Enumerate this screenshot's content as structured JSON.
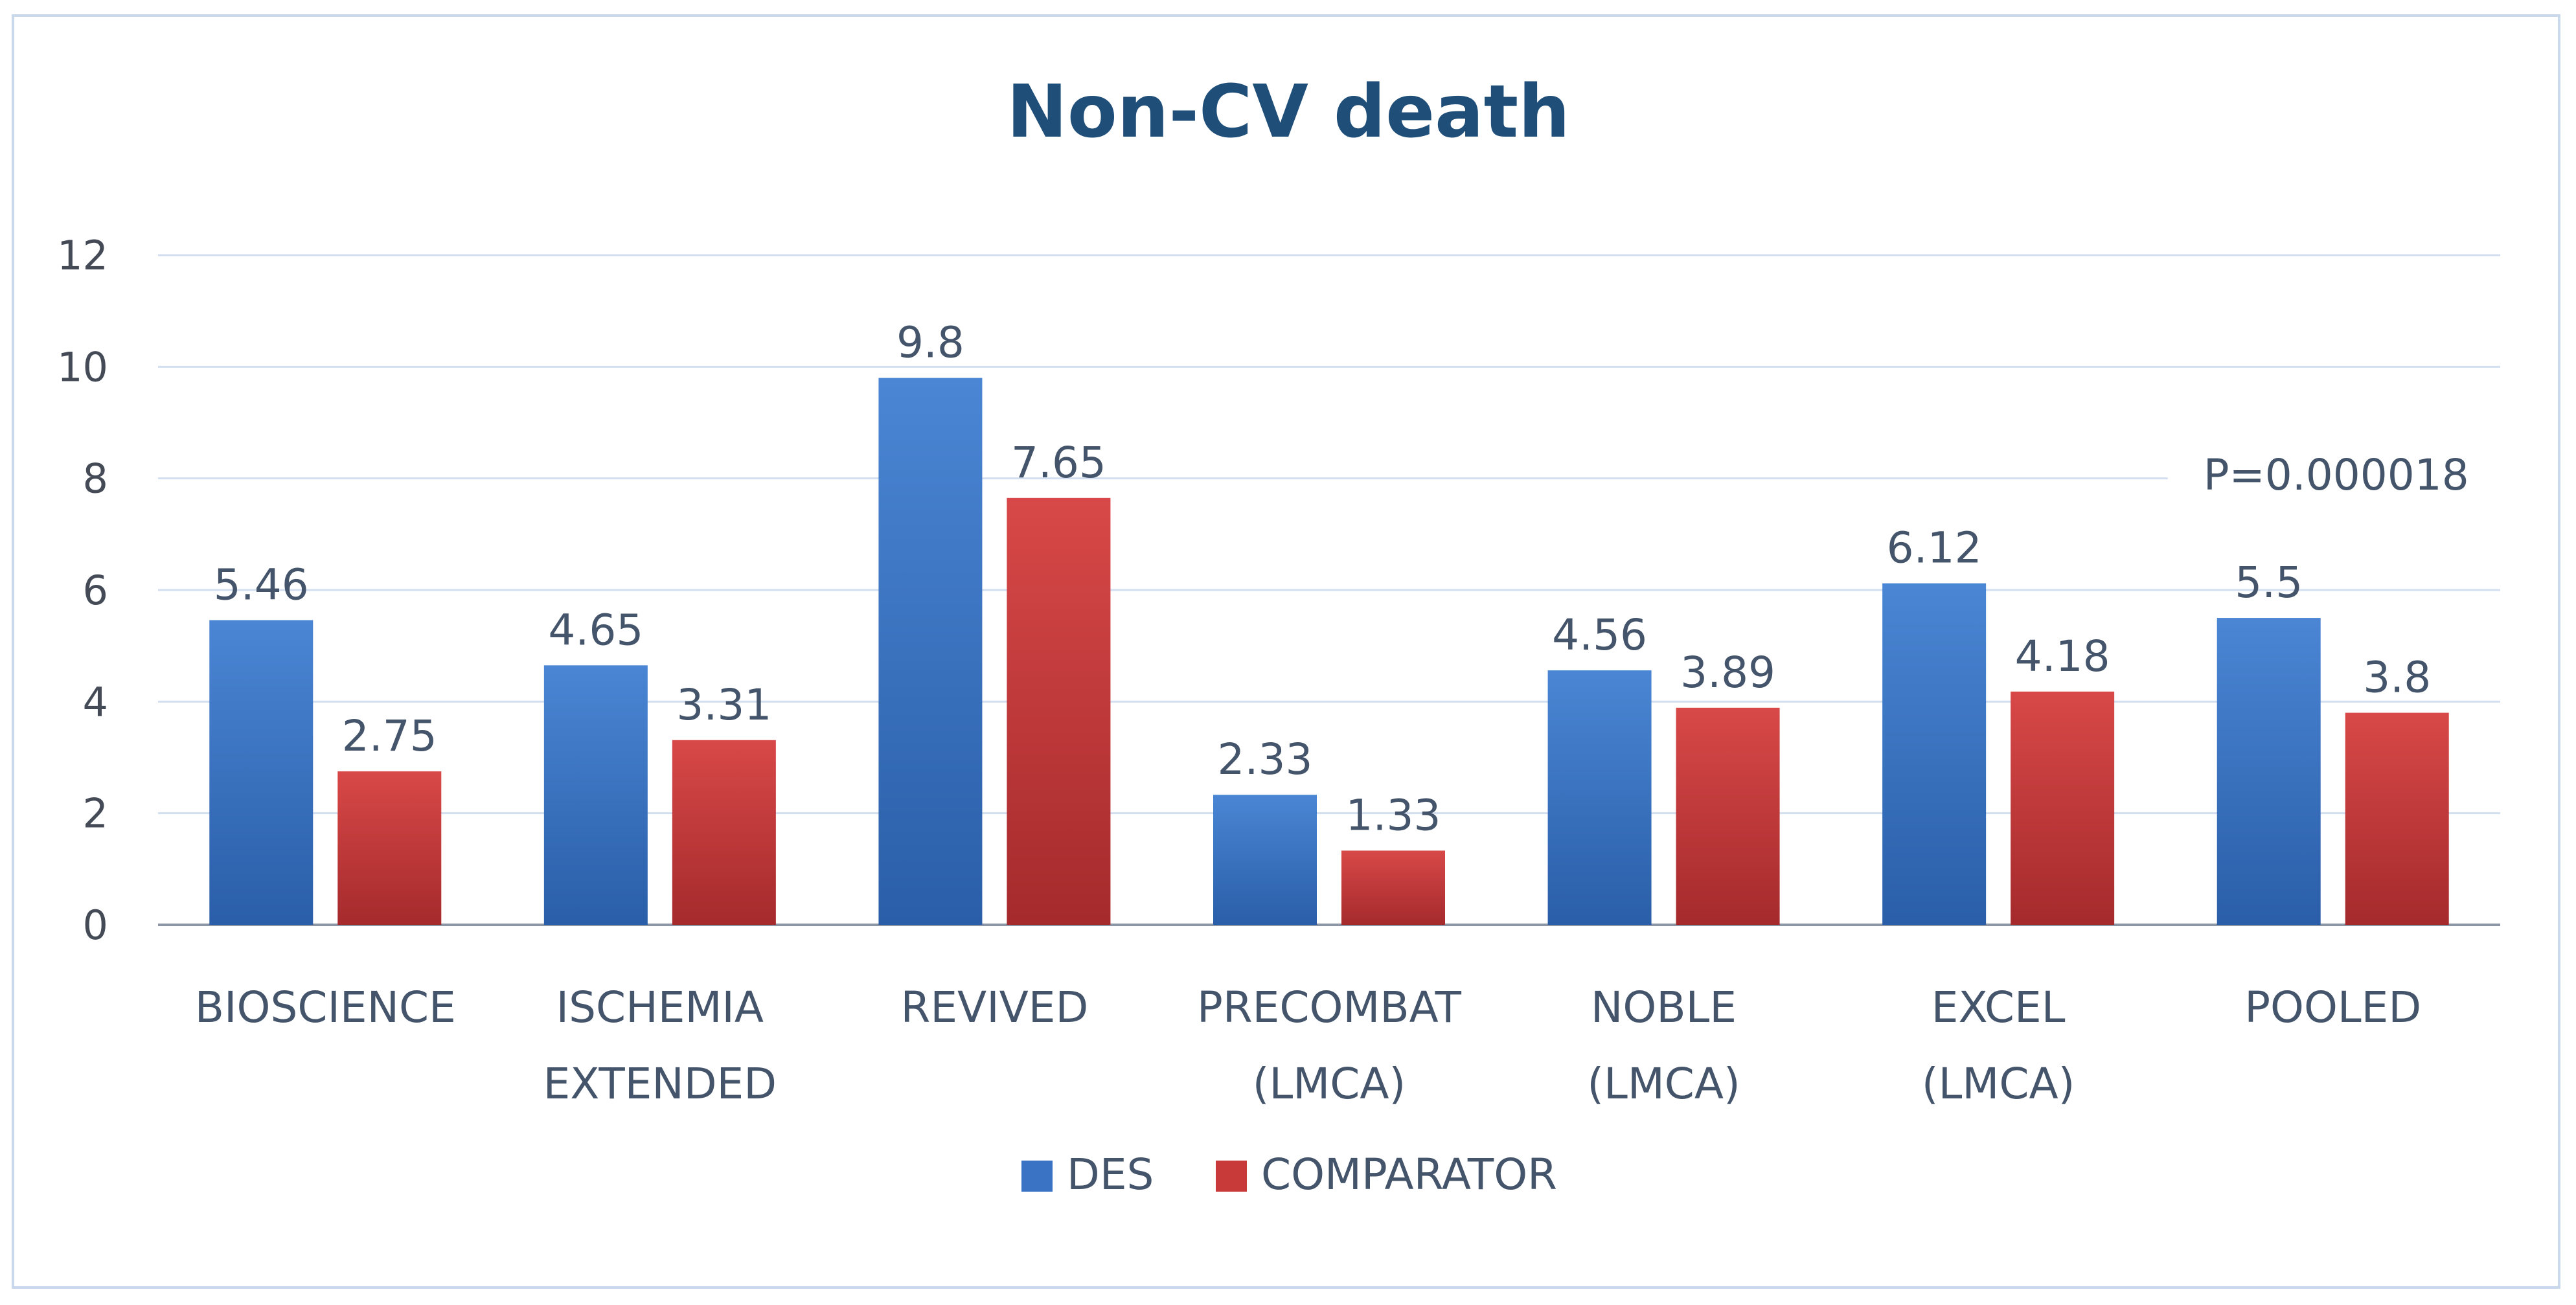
{
  "chart_data": {
    "type": "bar",
    "title": "Non-CV death",
    "xlabel": "",
    "ylabel": "",
    "ylim": [
      0,
      12
    ],
    "yticks": [
      0,
      2,
      4,
      6,
      8,
      10,
      12
    ],
    "grid": true,
    "legend_position": "bottom",
    "categories": [
      [
        "BIOSCIENCE"
      ],
      [
        "ISCHEMIA",
        "EXTENDED"
      ],
      [
        "REVIVED"
      ],
      [
        "PRECOMBAT",
        "(LMCA)"
      ],
      [
        "NOBLE",
        "(LMCA)"
      ],
      [
        "EXCEL",
        "(LMCA)"
      ],
      [
        "POOLED"
      ]
    ],
    "series": [
      {
        "name": "DES",
        "color": "#3a73c4",
        "values": [
          5.46,
          4.65,
          9.8,
          2.33,
          4.56,
          6.12,
          5.5
        ],
        "labels": [
          "5.46",
          "4.65",
          "9.8",
          "2.33",
          "4.56",
          "6.12",
          "5.5"
        ]
      },
      {
        "name": "COMPARATOR",
        "color": "#c8393a",
        "values": [
          2.75,
          3.31,
          7.65,
          1.33,
          3.89,
          4.18,
          3.8
        ],
        "labels": [
          "2.75",
          "3.31",
          "7.65",
          "1.33",
          "3.89",
          "4.18",
          "3.8"
        ]
      }
    ],
    "annotations": [
      {
        "text": "P=0.000018",
        "category_index": 6
      }
    ]
  }
}
